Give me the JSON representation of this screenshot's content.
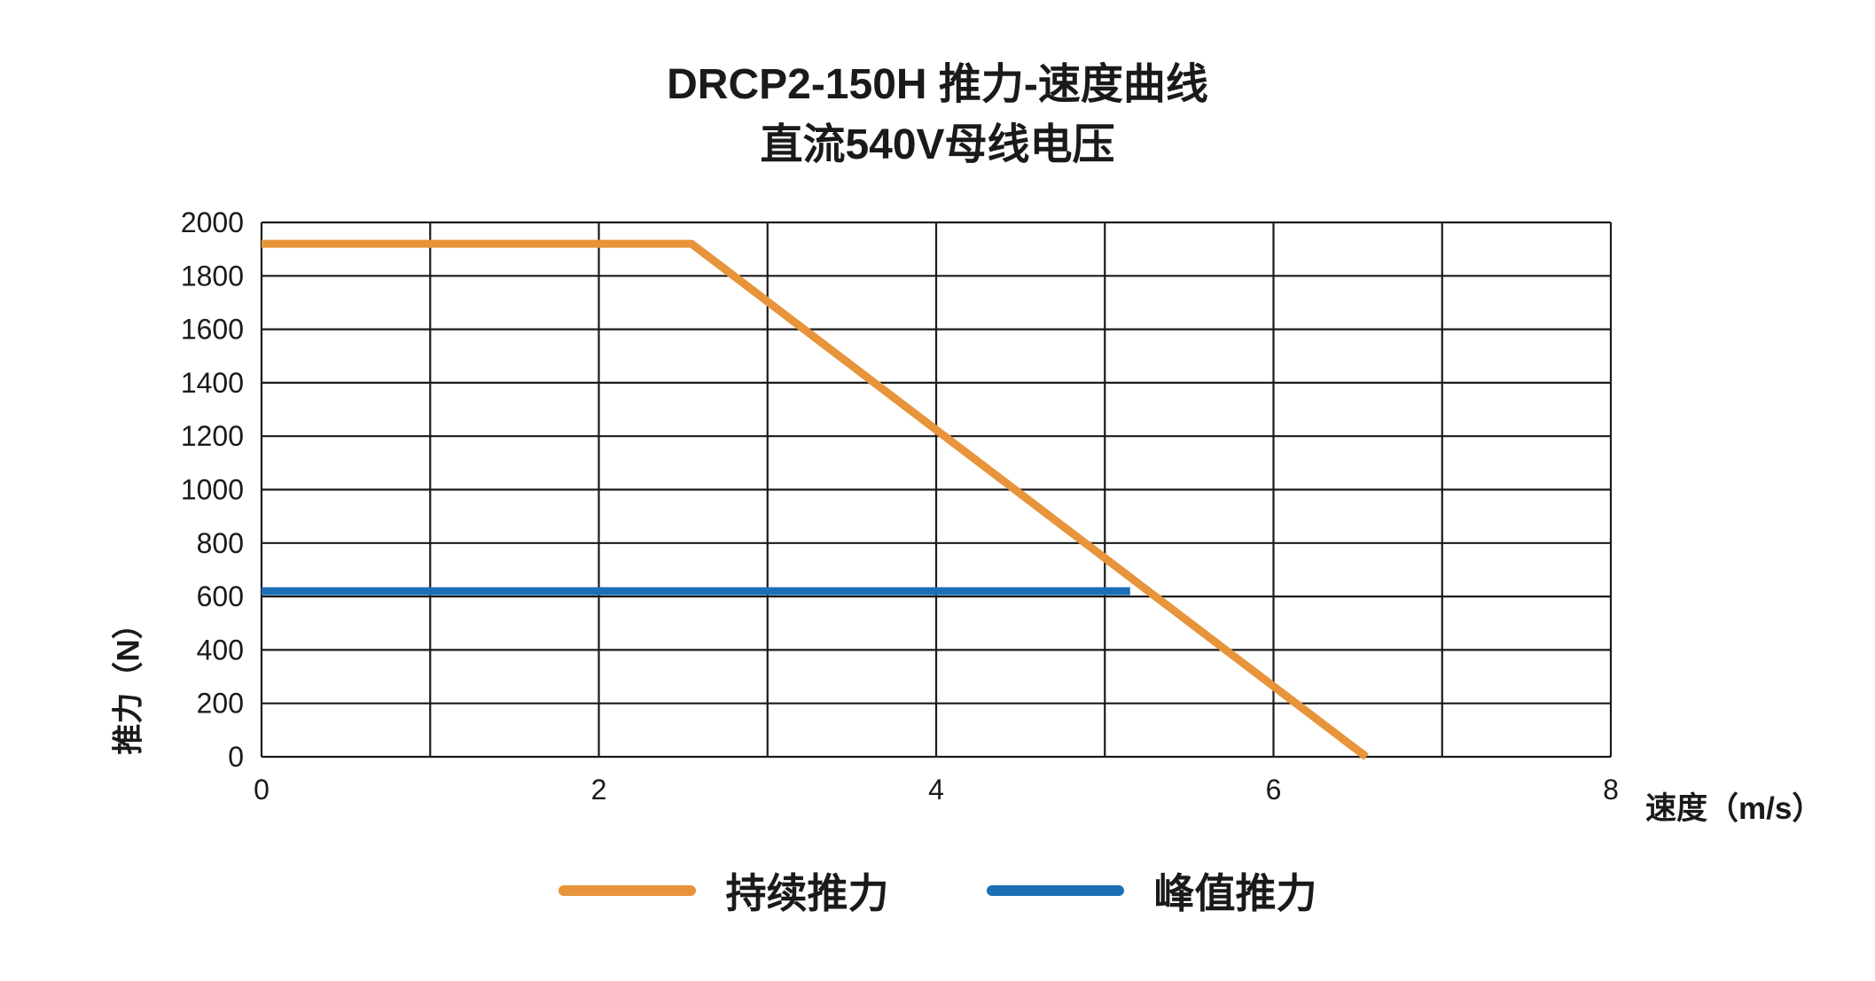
{
  "chart_data": {
    "type": "line",
    "title": "DRCP2-150H 推力-速度曲线",
    "subtitle": "直流540V母线电压",
    "xlabel": "速度（m/s）",
    "ylabel": "推力（N）",
    "xlim": [
      0,
      8
    ],
    "ylim": [
      0,
      2000
    ],
    "x_major_ticks": [
      0,
      2,
      4,
      6,
      8
    ],
    "x_grid_interval": 1,
    "y_ticks": [
      0,
      200,
      400,
      600,
      800,
      1000,
      1200,
      1400,
      1600,
      1800,
      2000
    ],
    "grid": true,
    "grid_color": "#1a1a1a",
    "legend_position": "bottom",
    "series": [
      {
        "name": "持续推力",
        "color": "#E8943A",
        "points": [
          [
            0,
            1920
          ],
          [
            2.55,
            1920
          ],
          [
            6.55,
            0
          ]
        ]
      },
      {
        "name": "峰值推力",
        "color": "#1C6FB4",
        "points": [
          [
            0,
            620
          ],
          [
            5.15,
            620
          ]
        ]
      }
    ]
  }
}
